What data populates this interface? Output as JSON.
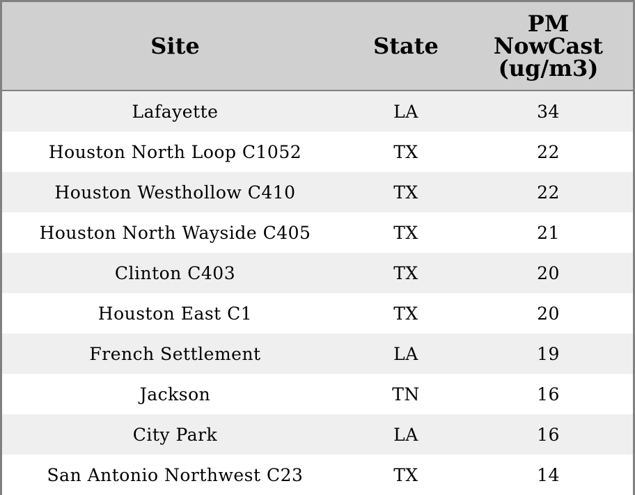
{
  "table": {
    "columns": [
      "Site",
      "State",
      "PM NowCast (ug/m3)"
    ],
    "rows": [
      [
        "Lafayette",
        "LA",
        34
      ],
      [
        "Houston North Loop C1052",
        "TX",
        22
      ],
      [
        "Houston Westhollow C410",
        "TX",
        22
      ],
      [
        "Houston North Wayside C405",
        "TX",
        21
      ],
      [
        "Clinton C403",
        "TX",
        20
      ],
      [
        "Houston East C1",
        "TX",
        20
      ],
      [
        "French Settlement",
        "LA",
        19
      ],
      [
        "Jackson",
        "TN",
        16
      ],
      [
        "City Park",
        "LA",
        16
      ],
      [
        "San Antonio Northwest C23",
        "TX",
        14
      ]
    ]
  }
}
